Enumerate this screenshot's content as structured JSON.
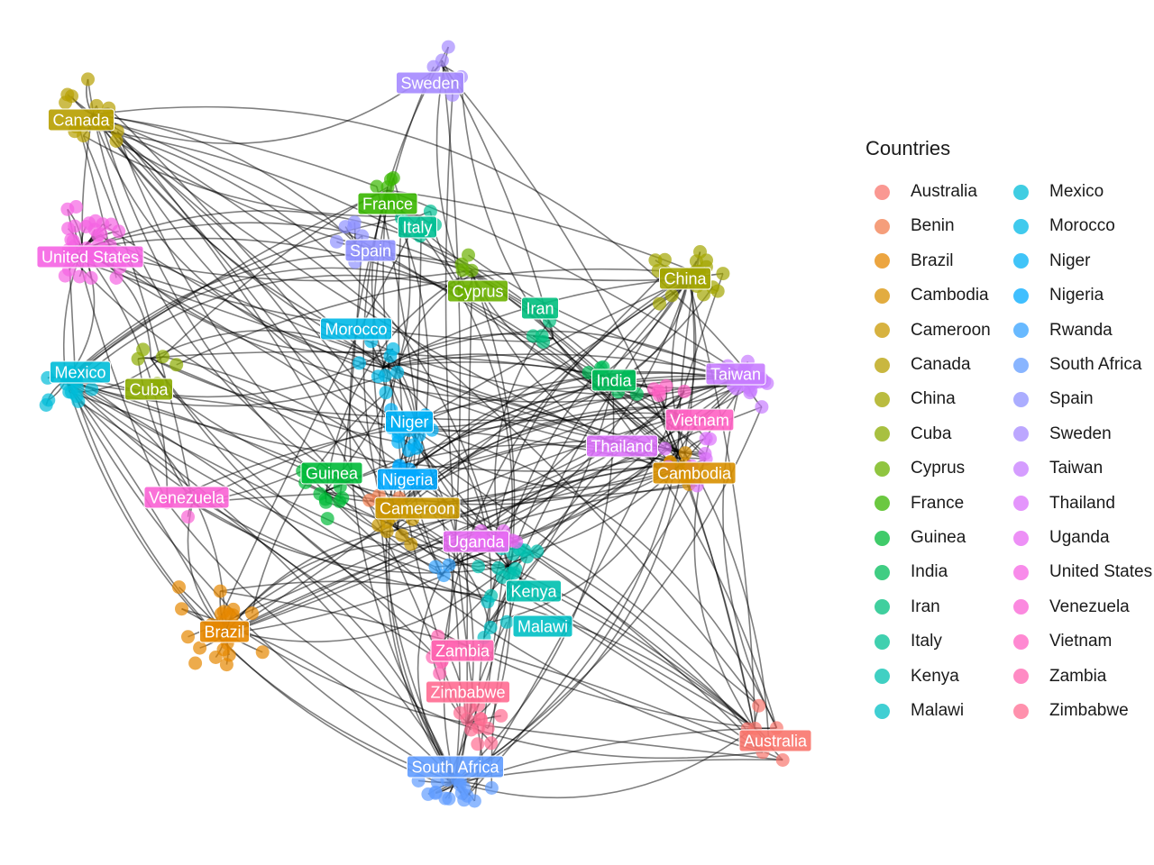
{
  "legend": {
    "title": "Countries",
    "items": [
      {
        "label": "Australia",
        "color": "#F8766D"
      },
      {
        "label": "Benin",
        "color": "#F17E4F"
      },
      {
        "label": "Brazil",
        "color": "#E58700"
      },
      {
        "label": "Cambodia",
        "color": "#D89000"
      },
      {
        "label": "Cameroon",
        "color": "#C99800"
      },
      {
        "label": "Canada",
        "color": "#B79F00"
      },
      {
        "label": "China",
        "color": "#A3A500"
      },
      {
        "label": "Cuba",
        "color": "#8BAB00"
      },
      {
        "label": "Cyprus",
        "color": "#6BB100"
      },
      {
        "label": "France",
        "color": "#39B600"
      },
      {
        "label": "Guinea",
        "color": "#00BA38"
      },
      {
        "label": "India",
        "color": "#00BC59"
      },
      {
        "label": "Iran",
        "color": "#00BF7D"
      },
      {
        "label": "Italy",
        "color": "#00C094"
      },
      {
        "label": "Kenya",
        "color": "#00C0AF"
      },
      {
        "label": "Malawi",
        "color": "#00BFC4"
      },
      {
        "label": "Mexico",
        "color": "#00BCD8"
      },
      {
        "label": "Morocco",
        "color": "#00B8E7"
      },
      {
        "label": "Niger",
        "color": "#00B0F6"
      },
      {
        "label": "Nigeria",
        "color": "#00A9FF"
      },
      {
        "label": "Rwanda",
        "color": "#35A2FF"
      },
      {
        "label": "South Africa",
        "color": "#619CFF"
      },
      {
        "label": "Spain",
        "color": "#8F91FF"
      },
      {
        "label": "Sweden",
        "color": "#A58AFF"
      },
      {
        "label": "Taiwan",
        "color": "#C77CFF"
      },
      {
        "label": "Thailand",
        "color": "#DB72FB"
      },
      {
        "label": "Uganda",
        "color": "#E76BF3"
      },
      {
        "label": "United States",
        "color": "#F564E3"
      },
      {
        "label": "Venezuela",
        "color": "#FA62D4"
      },
      {
        "label": "Vietnam",
        "color": "#FF61C3"
      },
      {
        "label": "Zambia",
        "color": "#FF64B0"
      },
      {
        "label": "Zimbabwe",
        "color": "#FF6C91"
      }
    ]
  },
  "edge_color": "#000000",
  "label_text_color": "#FFFFFF"
}
